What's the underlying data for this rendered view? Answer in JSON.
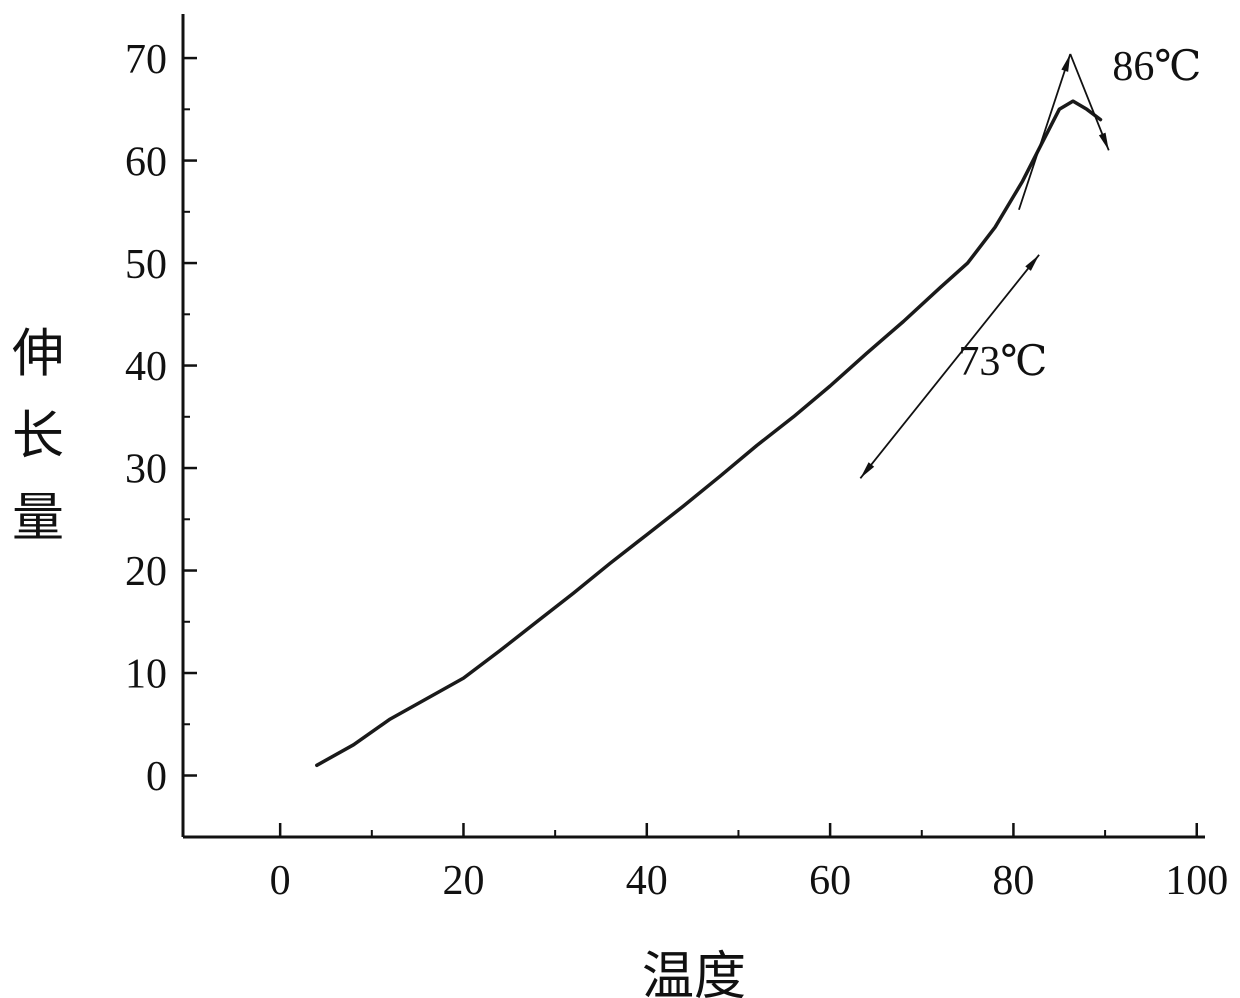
{
  "figure": {
    "background": "#ffffff",
    "ink_color": "#111111"
  },
  "chart_data": {
    "type": "line",
    "title": "",
    "xlabel": "温度",
    "ylabel": "伸长量",
    "xlim": [
      -10.6,
      100.9
    ],
    "ylim": [
      -6,
      74.3
    ],
    "xticks": [
      0,
      20,
      40,
      60,
      80,
      100
    ],
    "yticks": [
      0,
      10,
      20,
      30,
      40,
      50,
      60,
      70
    ],
    "x_minor_ticks": [
      10,
      30,
      50,
      70,
      90
    ],
    "y_minor_ticks": [
      5,
      15,
      25,
      35,
      45,
      55,
      65
    ],
    "grid": false,
    "legend": null,
    "series": [
      {
        "name": "elongation-vs-temperature",
        "color": "#1a1a1a",
        "stroke_width": 3.5,
        "x": [
          4,
          8,
          12,
          16,
          20,
          24,
          28,
          32,
          36,
          40,
          44,
          48,
          52,
          56,
          60,
          64,
          68,
          72,
          75,
          78,
          81,
          83,
          85,
          86.5,
          88,
          89.5
        ],
        "y": [
          1,
          3,
          5.5,
          7.5,
          9.5,
          12.2,
          15,
          17.8,
          20.7,
          23.5,
          26.3,
          29.2,
          32.2,
          35,
          38,
          41.2,
          44.3,
          47.6,
          50,
          53.5,
          58,
          61.5,
          65,
          65.8,
          65,
          64
        ]
      }
    ],
    "annotations": {
      "lines": [
        {
          "name": "inflection-double-arrow",
          "x1": 63.3,
          "y1": 29.0,
          "x2": 82.8,
          "y2": 50.8,
          "arrow_start": true,
          "arrow_end": true,
          "width": 1.8
        },
        {
          "name": "peak-tangent-rising",
          "x1": 80.6,
          "y1": 55.2,
          "x2": 86.2,
          "y2": 70.4,
          "arrow_start": false,
          "arrow_end": true,
          "width": 1.8
        },
        {
          "name": "peak-tangent-falling",
          "x1": 86.2,
          "y1": 70.4,
          "x2": 90.4,
          "y2": 61.0,
          "arrow_start": false,
          "arrow_end": true,
          "width": 1.8
        }
      ],
      "labels": [
        {
          "text": "73℃",
          "x": 74.0,
          "y": 40.5
        },
        {
          "text": "86℃",
          "x": 90.8,
          "y": 69.3
        }
      ]
    }
  }
}
